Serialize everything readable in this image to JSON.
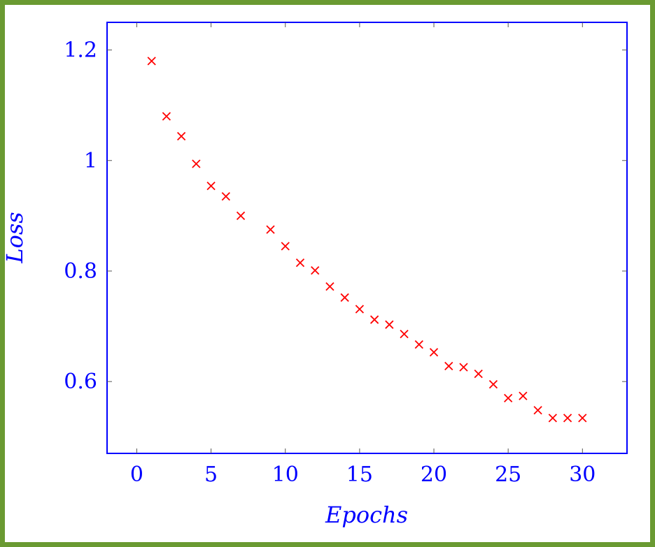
{
  "chart_data": {
    "type": "scatter",
    "title": "",
    "xlabel": "Epochs",
    "ylabel": "Loss",
    "xlim": [
      -2,
      33
    ],
    "ylim": [
      0.47,
      1.25
    ],
    "xticks": [
      "0",
      "5",
      "10",
      "15",
      "20",
      "25",
      "30"
    ],
    "yticks": [
      "0.6",
      "0.8",
      "1",
      "1.2"
    ],
    "grid": false,
    "legend": "none",
    "marker": "x",
    "colors": {
      "axis": "#0000ff",
      "marker": "#ff0000",
      "tick": "#555555",
      "border": "#6a9a32"
    },
    "series": [
      {
        "x": [
          1,
          2,
          3,
          4,
          5,
          6,
          7,
          9,
          10,
          11,
          12,
          13,
          14,
          15,
          16,
          17,
          18,
          19,
          20,
          21,
          22,
          23,
          24,
          25,
          26,
          27,
          28,
          29,
          30
        ],
        "y": [
          1.18,
          1.08,
          1.044,
          0.994,
          0.954,
          0.935,
          0.9,
          0.875,
          0.845,
          0.815,
          0.801,
          0.772,
          0.752,
          0.731,
          0.712,
          0.703,
          0.686,
          0.667,
          0.653,
          0.628,
          0.626,
          0.614,
          0.595,
          0.57,
          0.574,
          0.548,
          0.534,
          0.534,
          0.534
        ]
      }
    ]
  }
}
